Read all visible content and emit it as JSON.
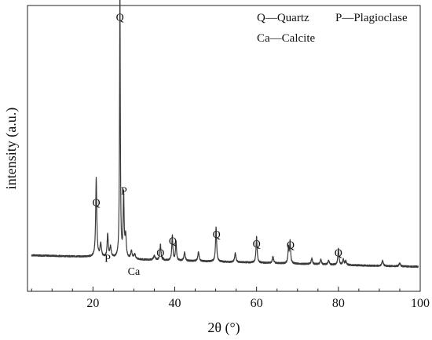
{
  "chart_data": {
    "type": "line",
    "xlabel": "2θ (°)",
    "ylabel": "intensity (a.u.)",
    "xlim": [
      4,
      100
    ],
    "ylim": [
      0,
      1.08
    ],
    "xticks": [
      20,
      40,
      60,
      80,
      100
    ],
    "x_minor_step": 5,
    "grid": false,
    "legend": {
      "position": "top-right",
      "entries": [
        "Q—Quartz",
        "P—Plagioclase",
        "Ca—Calcite"
      ]
    },
    "baseline": [
      [
        5,
        0.136
      ],
      [
        20,
        0.13
      ],
      [
        30,
        0.12
      ],
      [
        50,
        0.112
      ],
      [
        70,
        0.104
      ],
      [
        90,
        0.096
      ],
      [
        99.5,
        0.093
      ]
    ],
    "peaks": [
      {
        "x": 20.8,
        "y": 0.298,
        "width": 0.16
      },
      {
        "x": 21.9,
        "y": 0.05,
        "width": 0.2
      },
      {
        "x": 23.6,
        "y": 0.087,
        "width": 0.16
      },
      {
        "x": 24.3,
        "y": 0.04,
        "width": 0.2
      },
      {
        "x": 26.6,
        "y": 1.0,
        "width": 0.11
      },
      {
        "x": 27.5,
        "y": 0.238,
        "width": 0.14
      },
      {
        "x": 28.0,
        "y": 0.08,
        "width": 0.18
      },
      {
        "x": 29.4,
        "y": 0.03,
        "width": 0.2
      },
      {
        "x": 30.2,
        "y": 0.018,
        "width": 0.25
      },
      {
        "x": 35.0,
        "y": 0.015,
        "width": 0.25
      },
      {
        "x": 36.5,
        "y": 0.06,
        "width": 0.16
      },
      {
        "x": 39.4,
        "y": 0.095,
        "width": 0.15
      },
      {
        "x": 40.3,
        "y": 0.07,
        "width": 0.15
      },
      {
        "x": 42.4,
        "y": 0.032,
        "width": 0.18
      },
      {
        "x": 45.8,
        "y": 0.035,
        "width": 0.18
      },
      {
        "x": 50.1,
        "y": 0.13,
        "width": 0.16
      },
      {
        "x": 54.8,
        "y": 0.035,
        "width": 0.18
      },
      {
        "x": 60.0,
        "y": 0.098,
        "width": 0.16
      },
      {
        "x": 64.0,
        "y": 0.025,
        "width": 0.18
      },
      {
        "x": 67.8,
        "y": 0.06,
        "width": 0.15
      },
      {
        "x": 68.2,
        "y": 0.082,
        "width": 0.14
      },
      {
        "x": 73.5,
        "y": 0.022,
        "width": 0.18
      },
      {
        "x": 75.7,
        "y": 0.018,
        "width": 0.18
      },
      {
        "x": 77.6,
        "y": 0.016,
        "width": 0.18
      },
      {
        "x": 80.0,
        "y": 0.06,
        "width": 0.16
      },
      {
        "x": 81.2,
        "y": 0.02,
        "width": 0.18
      },
      {
        "x": 81.8,
        "y": 0.015,
        "width": 0.18
      },
      {
        "x": 90.8,
        "y": 0.02,
        "width": 0.2
      },
      {
        "x": 95.0,
        "y": 0.012,
        "width": 0.2
      }
    ],
    "annotations": [
      {
        "text": "Q",
        "x": 20.8,
        "y": 0.31
      },
      {
        "text": "P",
        "x": 23.6,
        "y": 0.1
      },
      {
        "text": "Q",
        "x": 26.6,
        "y": 1.01
      },
      {
        "text": "P",
        "x": 27.6,
        "y": 0.355
      },
      {
        "text": "Ca",
        "x": 30.0,
        "y": 0.05
      },
      {
        "text": "Q",
        "x": 36.5,
        "y": 0.12
      },
      {
        "text": "Q",
        "x": 39.5,
        "y": 0.165
      },
      {
        "text": "Q",
        "x": 50.2,
        "y": 0.19
      },
      {
        "text": "Q",
        "x": 60.0,
        "y": 0.155
      },
      {
        "text": "Q",
        "x": 68.3,
        "y": 0.15
      },
      {
        "text": "Q",
        "x": 80.0,
        "y": 0.12
      }
    ]
  },
  "colors": {
    "line": "#3a3a3a",
    "axis": "#222222",
    "text": "#111111"
  }
}
